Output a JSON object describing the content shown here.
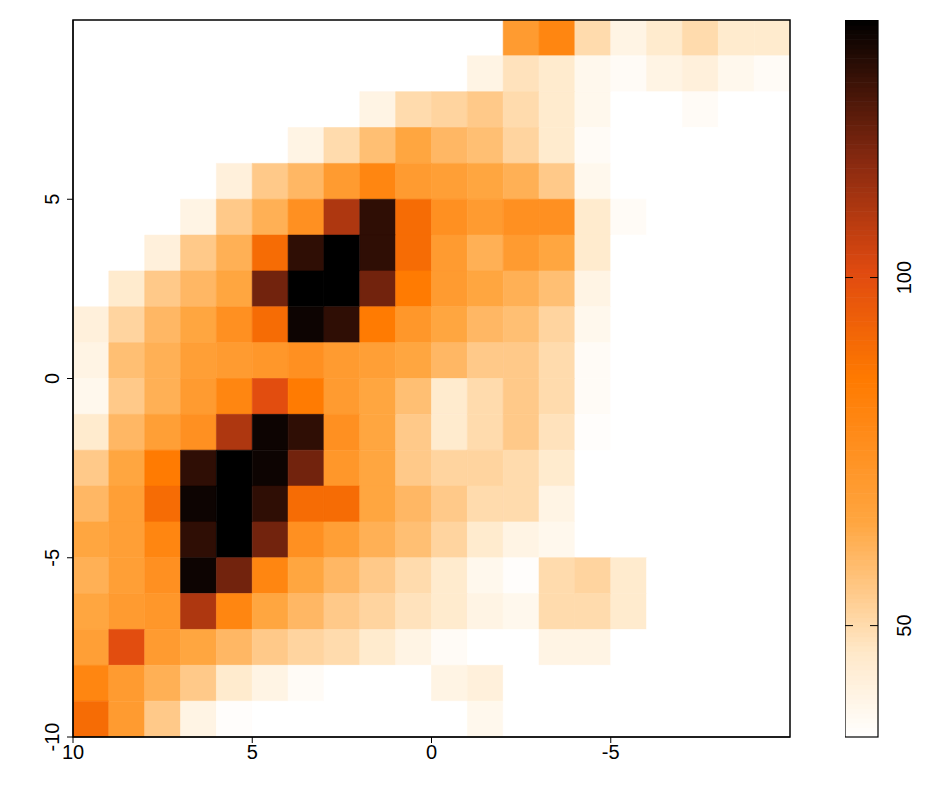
{
  "chart_data": {
    "type": "heatmap",
    "xlim": [
      10,
      -10
    ],
    "xticks": [
      10,
      5,
      0,
      -5
    ],
    "ylim": [
      -10,
      10
    ],
    "yticks": [
      -10,
      -5,
      0,
      5
    ],
    "heatmap": {
      "x": [
        9.5,
        8.5,
        7.5,
        6.5,
        5.5,
        4.5,
        3.5,
        2.5,
        1.5,
        0.5,
        -0.5,
        -1.5,
        -2.5,
        -3.5,
        -4.5,
        -5.5,
        -6.5,
        -7.5,
        -8.5,
        -9.5
      ],
      "y": [
        9.5,
        8.5,
        7.5,
        6.5,
        5.5,
        4.5,
        3.5,
        2.5,
        1.5,
        0.5,
        -0.5,
        -1.5,
        -2.5,
        -3.5,
        -4.5,
        -5.5,
        -6.5,
        -7.5,
        -8.5,
        -9.5
      ],
      "values": [
        [
          34,
          34,
          34,
          34,
          34,
          34,
          34,
          34,
          34,
          34,
          34,
          34,
          70,
          80,
          50,
          40,
          45,
          50,
          45,
          45
        ],
        [
          34,
          34,
          34,
          34,
          34,
          34,
          34,
          34,
          34,
          34,
          34,
          40,
          48,
          45,
          38,
          36,
          40,
          42,
          38,
          36
        ],
        [
          34,
          34,
          34,
          34,
          34,
          34,
          34,
          34,
          40,
          50,
          52,
          55,
          50,
          45,
          38,
          34,
          34,
          36,
          34,
          34
        ],
        [
          34,
          34,
          34,
          34,
          34,
          34,
          40,
          50,
          58,
          65,
          60,
          58,
          52,
          45,
          36,
          34,
          34,
          34,
          34,
          34
        ],
        [
          34,
          34,
          34,
          34,
          42,
          55,
          60,
          70,
          80,
          70,
          68,
          65,
          62,
          55,
          38,
          34,
          34,
          34,
          34,
          34
        ],
        [
          34,
          34,
          34,
          40,
          55,
          62,
          75,
          110,
          130,
          90,
          75,
          70,
          75,
          75,
          45,
          36,
          34,
          34,
          34,
          34
        ],
        [
          34,
          34,
          42,
          55,
          62,
          90,
          130,
          140,
          130,
          90,
          70,
          62,
          70,
          65,
          45,
          34,
          34,
          34,
          34,
          34
        ],
        [
          34,
          45,
          55,
          60,
          65,
          120,
          140,
          140,
          120,
          85,
          70,
          65,
          62,
          58,
          40,
          34,
          34,
          34,
          34,
          34
        ],
        [
          42,
          52,
          60,
          65,
          75,
          90,
          135,
          130,
          85,
          72,
          65,
          60,
          58,
          52,
          38,
          34,
          34,
          34,
          34,
          34
        ],
        [
          40,
          58,
          62,
          68,
          70,
          72,
          75,
          70,
          68,
          65,
          60,
          55,
          55,
          50,
          36,
          34,
          34,
          34,
          34,
          34
        ],
        [
          38,
          55,
          62,
          70,
          80,
          100,
          85,
          70,
          65,
          58,
          45,
          50,
          55,
          50,
          36,
          34,
          34,
          34,
          34,
          34
        ],
        [
          45,
          60,
          68,
          75,
          110,
          135,
          130,
          75,
          65,
          55,
          45,
          50,
          55,
          48,
          35,
          34,
          34,
          34,
          34,
          34
        ],
        [
          55,
          65,
          85,
          130,
          140,
          135,
          120,
          72,
          65,
          55,
          52,
          52,
          50,
          45,
          34,
          34,
          34,
          34,
          34,
          34
        ],
        [
          60,
          68,
          90,
          135,
          140,
          130,
          90,
          90,
          65,
          60,
          55,
          50,
          50,
          40,
          34,
          34,
          34,
          34,
          34,
          34
        ],
        [
          65,
          68,
          80,
          130,
          140,
          120,
          75,
          68,
          62,
          58,
          52,
          45,
          40,
          38,
          34,
          34,
          34,
          34,
          34,
          34
        ],
        [
          62,
          68,
          75,
          135,
          120,
          80,
          65,
          60,
          55,
          50,
          45,
          38,
          35,
          50,
          52,
          45,
          34,
          34,
          34,
          34
        ],
        [
          65,
          70,
          72,
          110,
          80,
          65,
          60,
          55,
          52,
          48,
          45,
          40,
          38,
          50,
          50,
          45,
          34,
          34,
          34,
          34
        ],
        [
          68,
          100,
          70,
          65,
          60,
          55,
          52,
          50,
          45,
          40,
          36,
          34,
          34,
          40,
          40,
          34,
          34,
          34,
          34,
          34
        ],
        [
          80,
          70,
          62,
          55,
          45,
          40,
          36,
          34,
          34,
          34,
          40,
          42,
          34,
          34,
          34,
          34,
          34,
          34,
          34,
          34
        ],
        [
          90,
          70,
          55,
          40,
          35,
          34,
          34,
          34,
          34,
          34,
          34,
          38,
          34,
          34,
          34,
          34,
          34,
          34,
          34,
          34
        ]
      ],
      "clim": [
        34,
        137
      ],
      "cticks": [
        50,
        100
      ]
    }
  }
}
